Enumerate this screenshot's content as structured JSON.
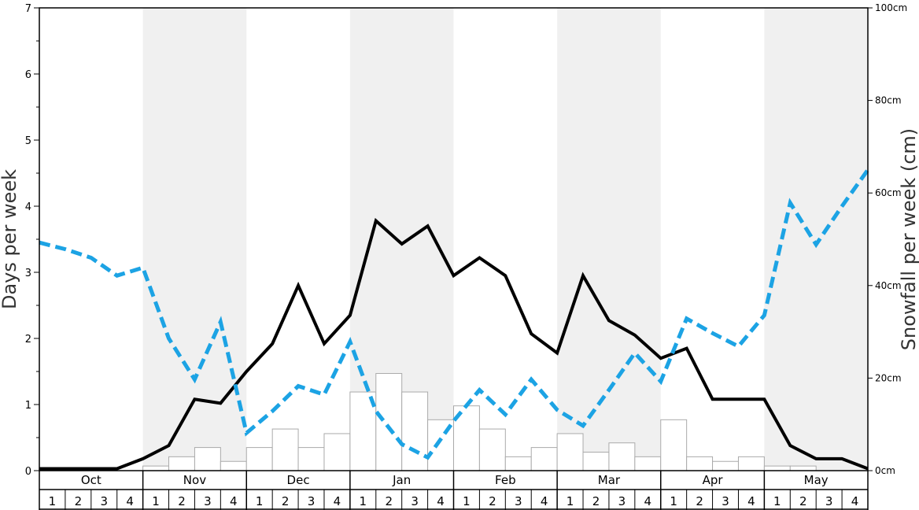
{
  "chart_data": {
    "type": "bar+line",
    "left_axis": {
      "label": "Days per week",
      "ylim": [
        0,
        7
      ],
      "ticks": [
        0,
        1,
        2,
        3,
        4,
        5,
        6,
        7
      ]
    },
    "right_axis": {
      "label": "Snowfall per week (cm)",
      "ylim": [
        0,
        100
      ],
      "tick_labels": [
        {
          "value": 0,
          "label": "0cm"
        },
        {
          "value": 20,
          "label": "20cm"
        },
        {
          "value": 40,
          "label": "40cm"
        },
        {
          "value": 60,
          "label": "60cm"
        },
        {
          "value": 80,
          "label": "80cm"
        },
        {
          "value": 100,
          "label": "100cm"
        }
      ]
    },
    "months": [
      "Oct",
      "Nov",
      "Dec",
      "Jan",
      "Feb",
      "Mar",
      "Apr",
      "May"
    ],
    "week_labels": [
      "1",
      "2",
      "3",
      "4"
    ],
    "series": [
      {
        "kind": "bar",
        "axis": "right",
        "color": "#ffffff",
        "stroke": "#aaaaaa",
        "values": [
          0,
          0,
          0,
          0,
          1,
          3,
          5,
          2,
          5,
          9,
          5,
          8,
          17,
          21,
          17,
          11,
          14,
          9,
          3,
          5,
          8,
          4,
          6,
          3,
          11,
          3,
          2,
          3,
          1,
          1,
          0,
          0
        ]
      },
      {
        "kind": "line",
        "axis": "left",
        "style": "solid",
        "color": "#000000",
        "values": [
          0.03,
          0.03,
          0.03,
          0.03,
          0.18,
          0.38,
          1.08,
          1.02,
          1.5,
          1.92,
          2.8,
          1.92,
          2.35,
          3.78,
          3.43,
          3.7,
          2.95,
          3.22,
          2.95,
          2.07,
          1.78,
          2.95,
          2.27,
          2.05,
          1.7,
          1.85,
          1.08,
          1.08,
          1.08,
          0.38,
          0.18,
          0.18,
          0.03
        ]
      },
      {
        "kind": "line",
        "axis": "left",
        "style": "dashed",
        "color": "#1ca3e4",
        "values": [
          3.45,
          3.35,
          3.22,
          2.95,
          3.07,
          2.0,
          1.38,
          2.25,
          0.57,
          0.9,
          1.28,
          1.15,
          1.95,
          0.9,
          0.4,
          0.2,
          0.75,
          1.22,
          0.85,
          1.38,
          0.92,
          0.68,
          1.22,
          1.78,
          1.35,
          2.3,
          2.08,
          1.88,
          2.35,
          4.05,
          3.42,
          4.0,
          4.55
        ]
      }
    ]
  }
}
